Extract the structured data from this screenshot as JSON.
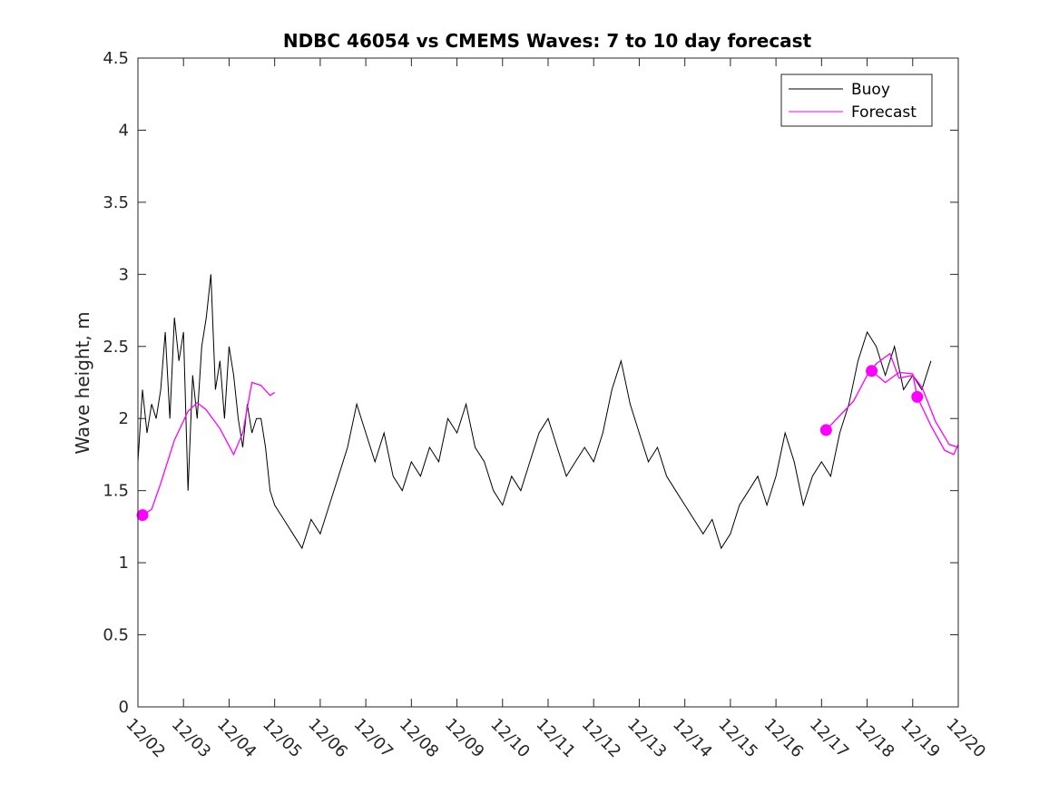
{
  "chart_data": {
    "type": "line",
    "title": "NDBC 46054 vs CMEMS Waves: 7 to 10 day forecast",
    "xlabel": "",
    "ylabel": "Wave height, m",
    "ylim": [
      0,
      4.5
    ],
    "yticks": [
      0,
      0.5,
      1,
      1.5,
      2,
      2.5,
      3,
      3.5,
      4,
      4.5
    ],
    "ytick_labels": [
      "0",
      "0.5",
      "1",
      "1.5",
      "2",
      "2.5",
      "3",
      "3.5",
      "4",
      "4.5"
    ],
    "xlim_days": [
      0,
      18
    ],
    "xtick_labels": [
      "12/02",
      "12/03",
      "12/04",
      "12/05",
      "12/06",
      "12/07",
      "12/08",
      "12/09",
      "12/10",
      "12/11",
      "12/12",
      "12/13",
      "12/14",
      "12/15",
      "12/16",
      "12/17",
      "12/18",
      "12/19",
      "12/20"
    ],
    "legend": {
      "location": "top-right",
      "entries": [
        "Buoy",
        "Forecast"
      ]
    },
    "colors": {
      "buoy": "#000000",
      "forecast": "#ff00ff"
    },
    "series": [
      {
        "name": "Buoy",
        "x_days": [
          0.0,
          0.1,
          0.2,
          0.3,
          0.4,
          0.5,
          0.6,
          0.7,
          0.8,
          0.9,
          1.0,
          1.1,
          1.2,
          1.3,
          1.4,
          1.5,
          1.6,
          1.7,
          1.8,
          1.9,
          2.0,
          2.1,
          2.2,
          2.3,
          2.4,
          2.5,
          2.6,
          2.7,
          2.8,
          2.9,
          3.0,
          3.2,
          3.4,
          3.6,
          3.8,
          4.0,
          4.2,
          4.4,
          4.6,
          4.8,
          5.0,
          5.2,
          5.4,
          5.6,
          5.8,
          6.0,
          6.2,
          6.4,
          6.6,
          6.8,
          7.0,
          7.2,
          7.4,
          7.6,
          7.8,
          8.0,
          8.2,
          8.4,
          8.6,
          8.8,
          9.0,
          9.2,
          9.4,
          9.6,
          9.8,
          10.0,
          10.2,
          10.4,
          10.6,
          10.8,
          11.0,
          11.2,
          11.4,
          11.6,
          11.8,
          12.0,
          12.2,
          12.4,
          12.6,
          12.8,
          13.0,
          13.2,
          13.4,
          13.6,
          13.8,
          14.0,
          14.2,
          14.4,
          14.6,
          14.8,
          15.0,
          15.2,
          15.4,
          15.6,
          15.8,
          16.0,
          16.2,
          16.4,
          16.6,
          16.8,
          17.0,
          17.2,
          17.4
        ],
        "values": [
          1.7,
          2.2,
          1.9,
          2.1,
          2.0,
          2.2,
          2.6,
          2.0,
          2.7,
          2.4,
          2.6,
          1.5,
          2.3,
          2.0,
          2.5,
          2.7,
          3.0,
          2.2,
          2.4,
          2.0,
          2.5,
          2.3,
          2.0,
          1.8,
          2.1,
          1.9,
          2.0,
          2.0,
          1.8,
          1.5,
          1.4,
          1.3,
          1.2,
          1.1,
          1.3,
          1.2,
          1.4,
          1.6,
          1.8,
          2.1,
          1.9,
          1.7,
          1.9,
          1.6,
          1.5,
          1.7,
          1.6,
          1.8,
          1.7,
          2.0,
          1.9,
          2.1,
          1.8,
          1.7,
          1.5,
          1.4,
          1.6,
          1.5,
          1.7,
          1.9,
          2.0,
          1.8,
          1.6,
          1.7,
          1.8,
          1.7,
          1.9,
          2.2,
          2.4,
          2.1,
          1.9,
          1.7,
          1.8,
          1.6,
          1.5,
          1.4,
          1.3,
          1.2,
          1.3,
          1.1,
          1.2,
          1.4,
          1.5,
          1.6,
          1.4,
          1.6,
          1.9,
          1.7,
          1.4,
          1.6,
          1.7,
          1.6,
          1.9,
          2.1,
          2.4,
          2.6,
          2.5,
          2.3,
          2.5,
          2.2,
          2.3,
          2.2,
          2.4
        ]
      },
      {
        "name": "Forecast",
        "segments": [
          {
            "x_days": [
              0.1,
              0.3,
              0.5,
              0.8,
              1.1,
              1.3,
              1.5,
              1.8,
              2.1,
              2.3,
              2.5,
              2.7,
              2.9,
              3.0
            ],
            "values": [
              1.33,
              1.37,
              1.55,
              1.85,
              2.05,
              2.11,
              2.06,
              1.93,
              1.75,
              1.9,
              2.25,
              2.23,
              2.16,
              2.18
            ]
          },
          {
            "x_days": [
              15.1,
              15.4,
              15.7,
              16.0,
              16.2,
              16.5,
              16.7,
              17.0,
              17.2,
              17.5,
              17.8,
              18.0
            ],
            "values": [
              1.92,
              2.02,
              2.12,
              2.3,
              2.38,
              2.45,
              2.28,
              2.3,
              2.22,
              1.98,
              1.82,
              1.8
            ]
          },
          {
            "x_days": [
              16.1,
              16.4,
              16.7,
              17.0,
              17.1,
              17.4,
              17.7,
              17.9,
              18.0
            ],
            "values": [
              2.33,
              2.25,
              2.32,
              2.31,
              2.15,
              1.95,
              1.78,
              1.75,
              1.82
            ]
          }
        ],
        "markers": {
          "x_days": [
            0.1,
            15.1,
            16.1,
            17.1
          ],
          "values": [
            1.33,
            1.92,
            2.33,
            2.15
          ]
        }
      }
    ]
  }
}
